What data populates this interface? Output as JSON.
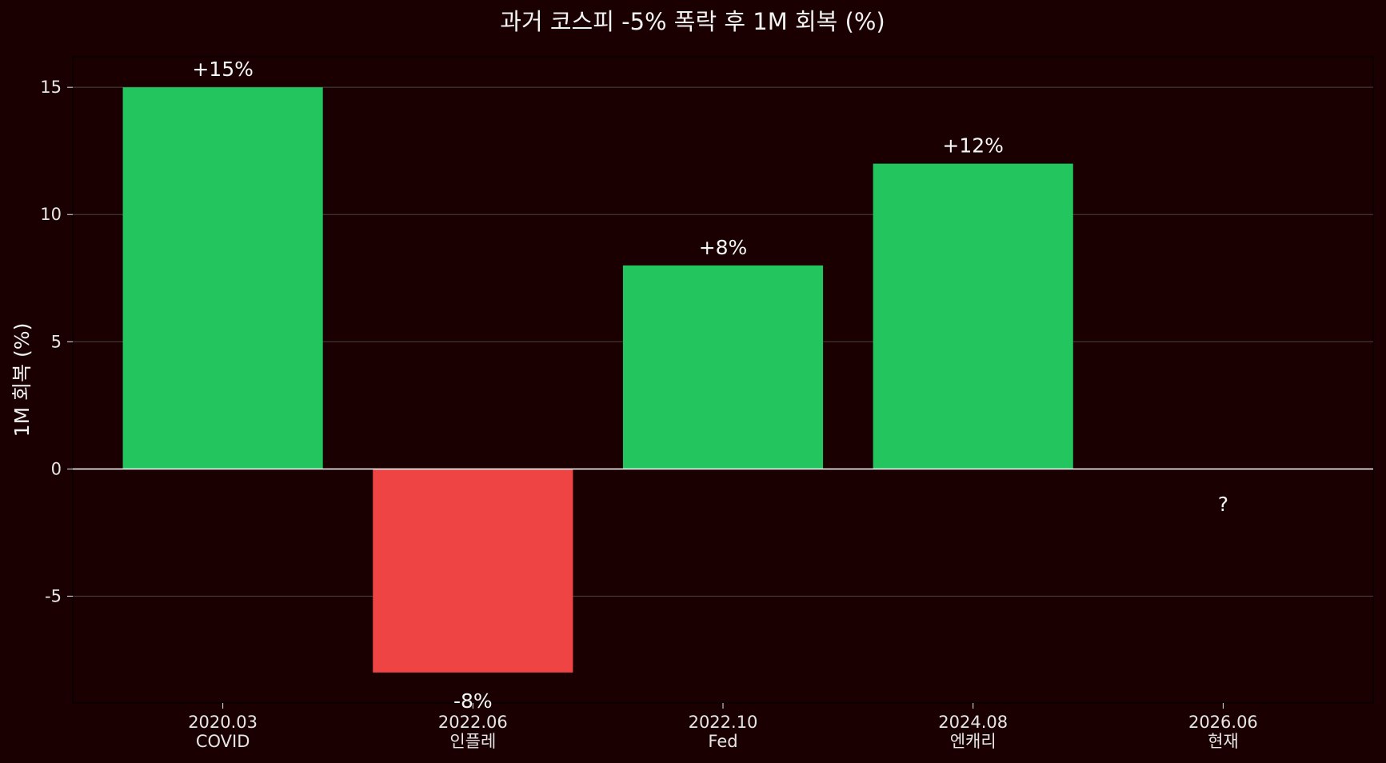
{
  "chart_data": {
    "type": "bar",
    "title": "과거 코스피 -5% 폭락 후 1M 회복 (%)",
    "xlabel": "",
    "ylabel": "1M 회복 (%)",
    "ylim": [
      -9.2,
      16.2
    ],
    "yticks": [
      -5,
      0,
      5,
      10,
      15
    ],
    "grid": "horizontal",
    "categories": [
      {
        "date": "2020.03",
        "event": "COVID"
      },
      {
        "date": "2022.06",
        "event": "인플레"
      },
      {
        "date": "2022.10",
        "event": "Fed"
      },
      {
        "date": "2024.08",
        "event": "엔캐리"
      },
      {
        "date": "2026.06",
        "event": "현재"
      }
    ],
    "values": [
      15,
      -8,
      8,
      12,
      null
    ],
    "data_labels": [
      "+15%",
      "-8%",
      "+8%",
      "+12%",
      "?"
    ],
    "colors": {
      "background": "#1a0000",
      "positive": "#22c55e",
      "negative": "#ef4444",
      "text": "#f2f2f2",
      "grid": "#555555",
      "zero_line": "#ffffff"
    }
  }
}
